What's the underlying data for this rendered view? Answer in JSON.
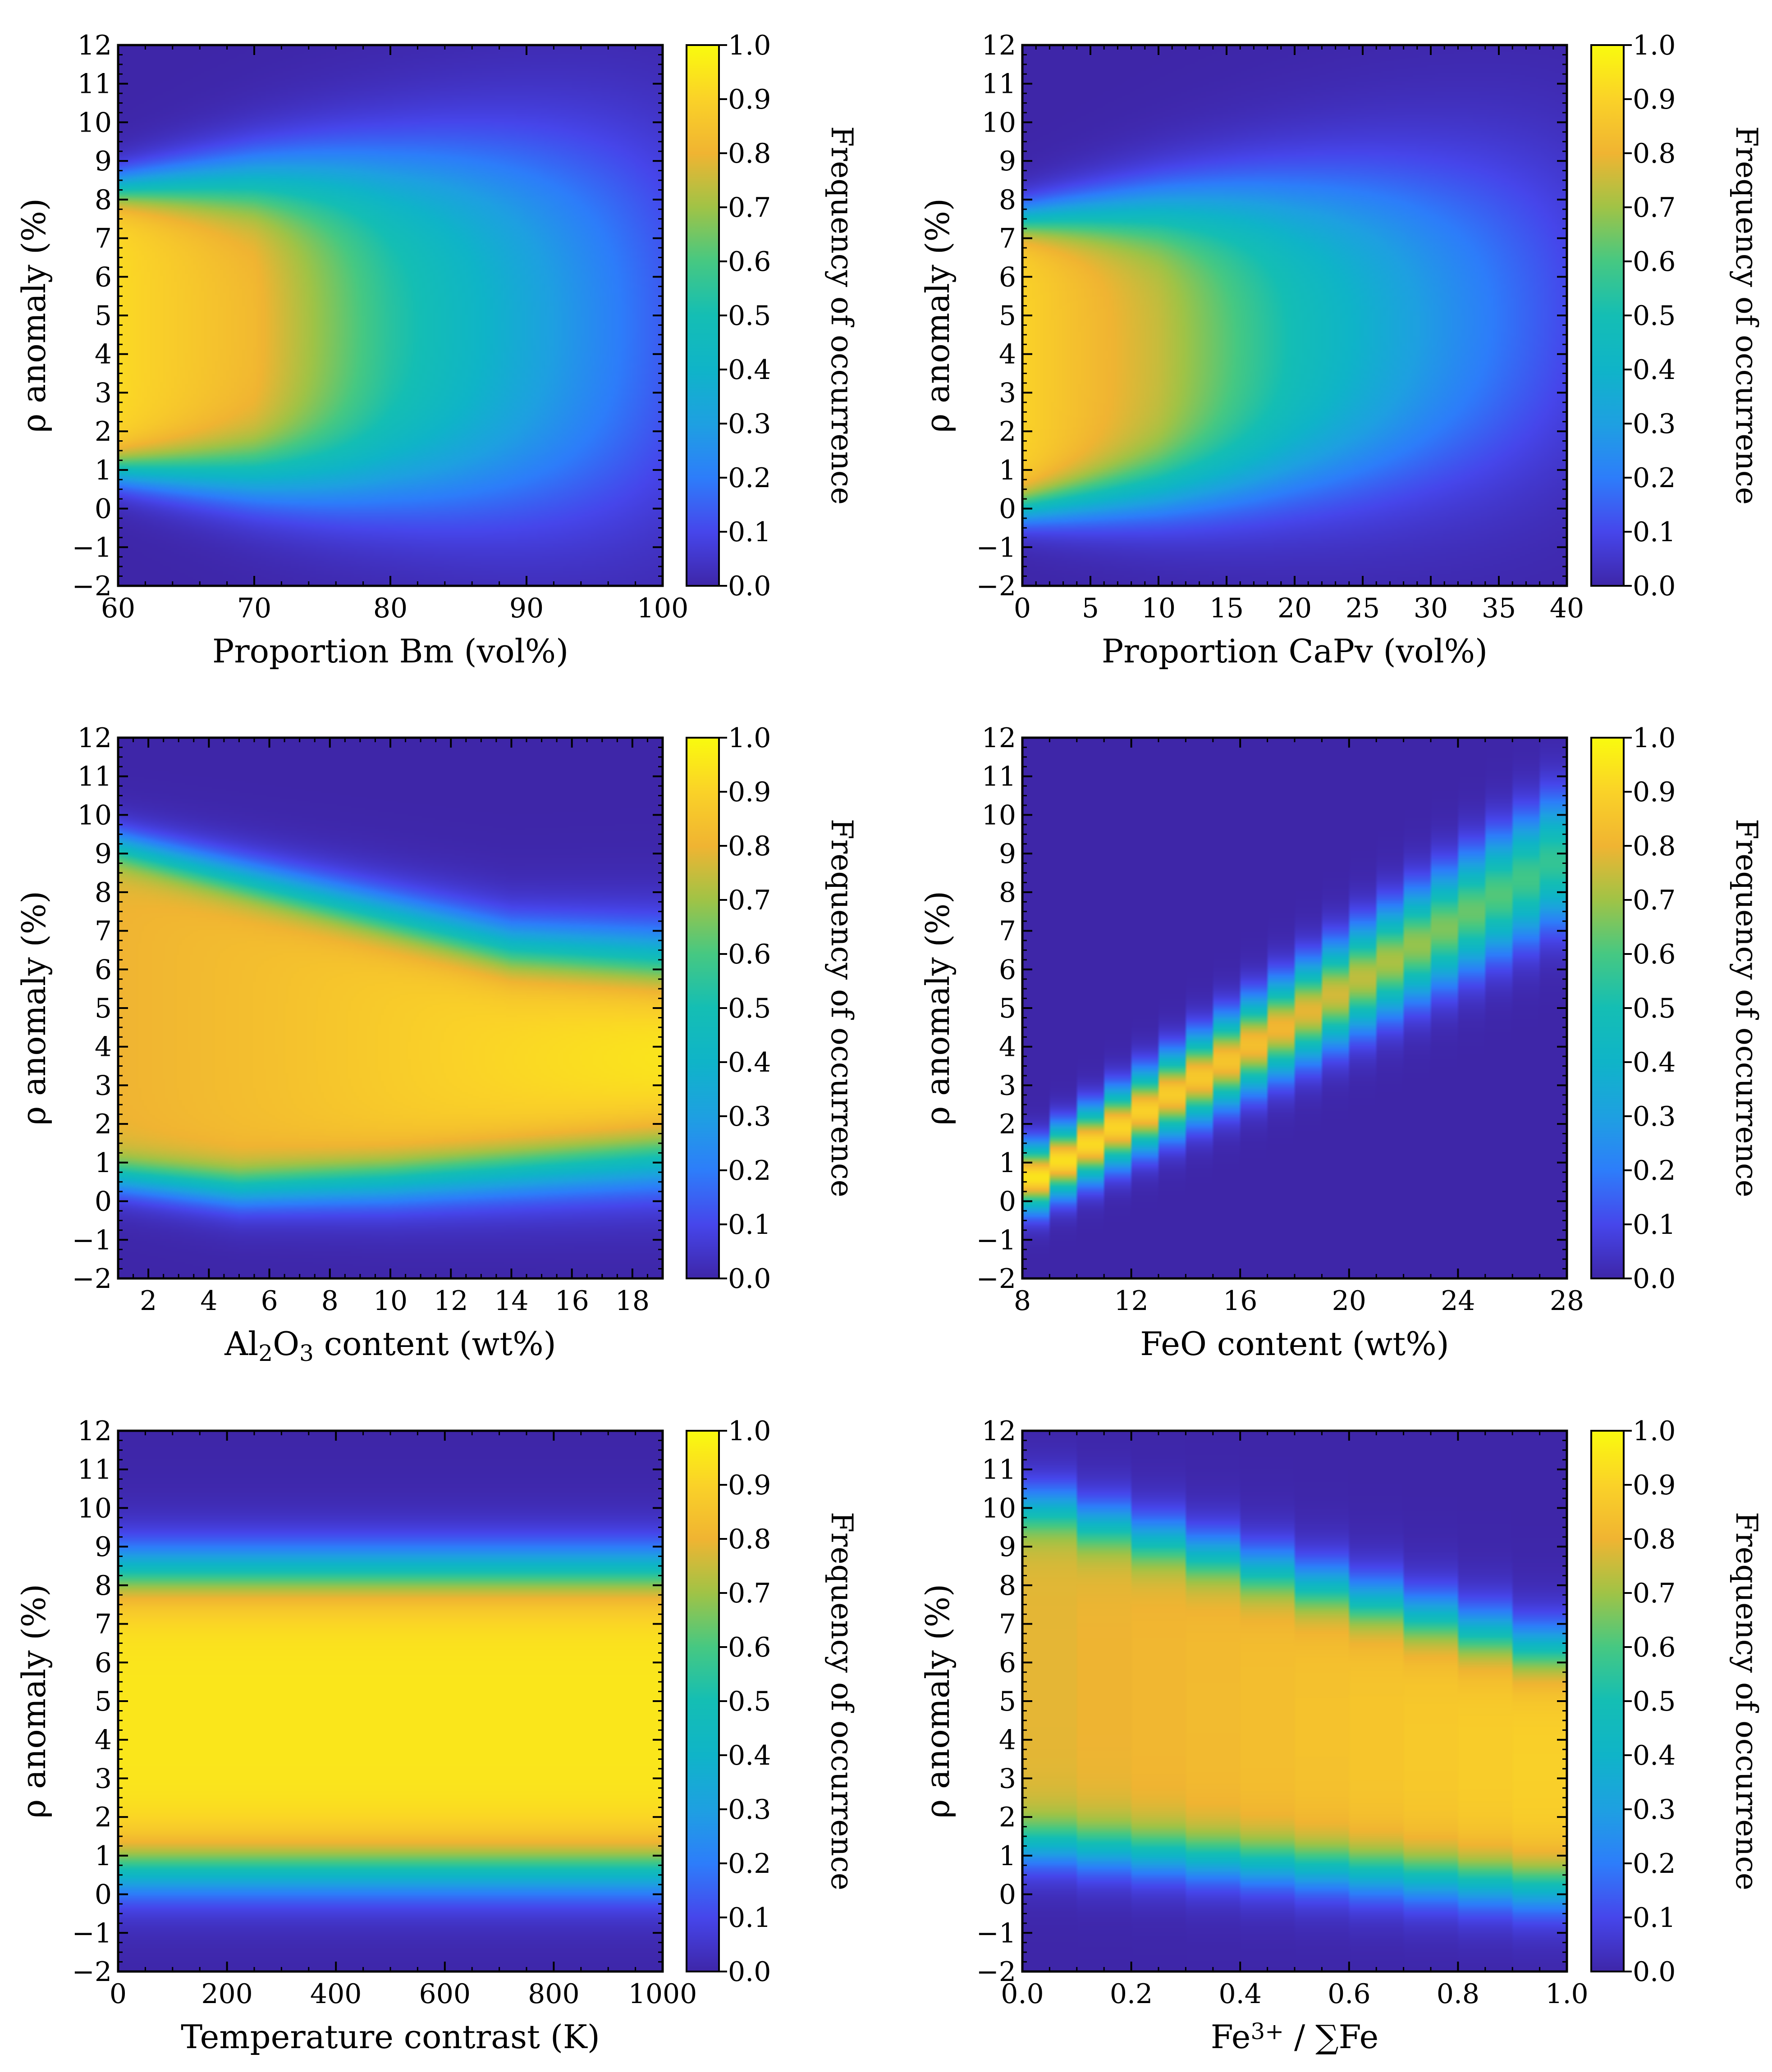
{
  "figure": {
    "layout": "3 rows x 2 columns"
  },
  "chart_data": [
    {
      "type": "heatmap",
      "id": "bm",
      "xlabel": "Proportion Bm (vol%)",
      "ylabel": "ρ anomaly (%)",
      "xlim": [
        60,
        100
      ],
      "ylim": [
        -2,
        12
      ],
      "xticks": [
        60,
        70,
        80,
        90,
        100
      ],
      "yticks": [
        -2,
        -1,
        0,
        1,
        2,
        3,
        4,
        5,
        6,
        7,
        8,
        9,
        10,
        11,
        12
      ],
      "colorbar_label": "Frequency of occurrence",
      "colorbar_ticks": [
        "0.0",
        "0.1",
        "0.2",
        "0.3",
        "0.4",
        "0.5",
        "0.6",
        "0.7",
        "0.8",
        "0.9",
        "1.0"
      ],
      "model": "band",
      "stepped_x": false,
      "band": {
        "lower": [
          [
            60,
            1.0
          ],
          [
            100,
            0.3
          ]
        ],
        "upper": [
          [
            60,
            8.3
          ],
          [
            100,
            9.2
          ]
        ],
        "edge_sigma": [
          [
            60,
            0.3
          ],
          [
            100,
            1.3
          ]
        ]
      },
      "peak": [
        [
          60,
          0.92
        ],
        [
          70,
          0.82
        ],
        [
          80,
          0.55
        ],
        [
          90,
          0.35
        ],
        [
          100,
          0.15
        ]
      ]
    },
    {
      "type": "heatmap",
      "id": "capv",
      "xlabel": "Proportion CaPv (vol%)",
      "ylabel": "ρ anomaly (%)",
      "xlim": [
        0,
        40
      ],
      "ylim": [
        -2,
        12
      ],
      "xticks": [
        0,
        5,
        10,
        15,
        20,
        25,
        30,
        35,
        40
      ],
      "yticks": [
        -2,
        -1,
        0,
        1,
        2,
        3,
        4,
        5,
        6,
        7,
        8,
        9,
        10,
        11,
        12
      ],
      "colorbar_label": "Frequency of occurrence",
      "colorbar_ticks": [
        "0.0",
        "0.1",
        "0.2",
        "0.3",
        "0.4",
        "0.5",
        "0.6",
        "0.7",
        "0.8",
        "0.9",
        "1.0"
      ],
      "model": "band",
      "stepped_x": false,
      "band": {
        "lower": [
          [
            0,
            0.0
          ],
          [
            40,
            1.6
          ]
        ],
        "upper": [
          [
            0,
            7.5
          ],
          [
            40,
            8.6
          ]
        ],
        "edge_sigma": [
          [
            0,
            0.3
          ],
          [
            40,
            1.3
          ]
        ]
      },
      "peak": [
        [
          0,
          0.9
        ],
        [
          10,
          0.75
        ],
        [
          20,
          0.5
        ],
        [
          30,
          0.3
        ],
        [
          40,
          0.12
        ]
      ]
    },
    {
      "type": "heatmap",
      "id": "al2o3",
      "xlabel_parts": [
        "Al",
        "2",
        "O",
        "3",
        " content (wt%)"
      ],
      "ylabel": "ρ anomaly (%)",
      "xlim": [
        1,
        19
      ],
      "ylim": [
        -2,
        12
      ],
      "xticks": [
        2,
        4,
        6,
        8,
        10,
        12,
        14,
        16,
        18
      ],
      "yticks": [
        -2,
        -1,
        0,
        1,
        2,
        3,
        4,
        5,
        6,
        7,
        8,
        9,
        10,
        11,
        12
      ],
      "colorbar_label": "Frequency of occurrence",
      "colorbar_ticks": [
        "0.0",
        "0.1",
        "0.2",
        "0.3",
        "0.4",
        "0.5",
        "0.6",
        "0.7",
        "0.8",
        "0.9",
        "1.0"
      ],
      "model": "band",
      "stepped_x": false,
      "band": {
        "lower": [
          [
            1,
            0.6
          ],
          [
            5,
            0.3
          ],
          [
            10,
            0.5
          ],
          [
            19,
            1.1
          ]
        ],
        "upper": [
          [
            1,
            9.2
          ],
          [
            10,
            7.4
          ],
          [
            14,
            6.6
          ],
          [
            19,
            6.3
          ]
        ],
        "edge_sigma": [
          [
            1,
            0.3
          ],
          [
            19,
            0.55
          ]
        ]
      },
      "peak": [
        [
          1,
          0.8
        ],
        [
          6,
          0.84
        ],
        [
          12,
          0.9
        ],
        [
          19,
          0.96
        ]
      ]
    },
    {
      "type": "heatmap",
      "id": "feo",
      "xlabel": "FeO content (wt%)",
      "ylabel": "ρ anomaly (%)",
      "xlim": [
        8,
        28
      ],
      "ylim": [
        -2,
        12
      ],
      "xticks": [
        8,
        12,
        16,
        20,
        24,
        28
      ],
      "yticks": [
        -2,
        -1,
        0,
        1,
        2,
        3,
        4,
        5,
        6,
        7,
        8,
        9,
        10,
        11,
        12
      ],
      "colorbar_label": "Frequency of occurrence",
      "colorbar_ticks": [
        "0.0",
        "0.1",
        "0.2",
        "0.3",
        "0.4",
        "0.5",
        "0.6",
        "0.7",
        "0.8",
        "0.9",
        "1.0"
      ],
      "model": "ridge",
      "stepped_x": true,
      "x_step": 1,
      "ridge": {
        "center": [
          [
            8,
            0.4
          ],
          [
            28,
            9.0
          ]
        ],
        "sigma": [
          [
            8,
            0.55
          ],
          [
            28,
            1.1
          ]
        ],
        "peak": [
          [
            8,
            0.95
          ],
          [
            16,
            0.85
          ],
          [
            28,
            0.55
          ]
        ]
      }
    },
    {
      "type": "heatmap",
      "id": "temperature",
      "xlabel": "Temperature contrast (K)",
      "ylabel": "ρ anomaly (%)",
      "xlim": [
        0,
        1000
      ],
      "ylim": [
        -2,
        12
      ],
      "xticks": [
        0,
        200,
        400,
        600,
        800,
        1000
      ],
      "yticks": [
        -2,
        -1,
        0,
        1,
        2,
        3,
        4,
        5,
        6,
        7,
        8,
        9,
        10,
        11,
        12
      ],
      "colorbar_label": "Frequency of occurrence",
      "colorbar_ticks": [
        "0.0",
        "0.1",
        "0.2",
        "0.3",
        "0.4",
        "0.5",
        "0.6",
        "0.7",
        "0.8",
        "0.9",
        "1.0"
      ],
      "model": "band",
      "stepped_x": false,
      "band": {
        "lower": [
          [
            0,
            0.6
          ],
          [
            1000,
            0.6
          ]
        ],
        "upper": [
          [
            0,
            8.4
          ],
          [
            1000,
            8.4
          ]
        ],
        "edge_sigma": [
          [
            0,
            0.45
          ],
          [
            1000,
            0.45
          ]
        ]
      },
      "peak": [
        [
          0,
          0.95
        ],
        [
          1000,
          0.95
        ]
      ]
    },
    {
      "type": "heatmap",
      "id": "fe3",
      "xlabel_parts": [
        "Fe",
        "3+",
        " / ∑Fe"
      ],
      "ylabel": "ρ anomaly (%)",
      "xlim": [
        0,
        1
      ],
      "ylim": [
        -2,
        12
      ],
      "xticks": [
        "0.0",
        "0.2",
        "0.4",
        "0.6",
        "0.8",
        "1.0"
      ],
      "yticks": [
        -2,
        -1,
        0,
        1,
        2,
        3,
        4,
        5,
        6,
        7,
        8,
        9,
        10,
        11,
        12
      ],
      "colorbar_label": "Frequency of occurrence",
      "colorbar_ticks": [
        "0.0",
        "0.1",
        "0.2",
        "0.3",
        "0.4",
        "0.5",
        "0.6",
        "0.7",
        "0.8",
        "0.9",
        "1.0"
      ],
      "model": "band",
      "stepped_x": true,
      "x_step": 0.1,
      "band": {
        "lower": [
          [
            0,
            1.3
          ],
          [
            1,
            0.1
          ]
        ],
        "upper": [
          [
            0,
            10.2
          ],
          [
            1,
            6.2
          ]
        ],
        "edge_sigma": [
          [
            0,
            0.4
          ],
          [
            1,
            0.45
          ]
        ]
      },
      "peak": [
        [
          0,
          0.78
        ],
        [
          1,
          0.9
        ]
      ]
    }
  ]
}
